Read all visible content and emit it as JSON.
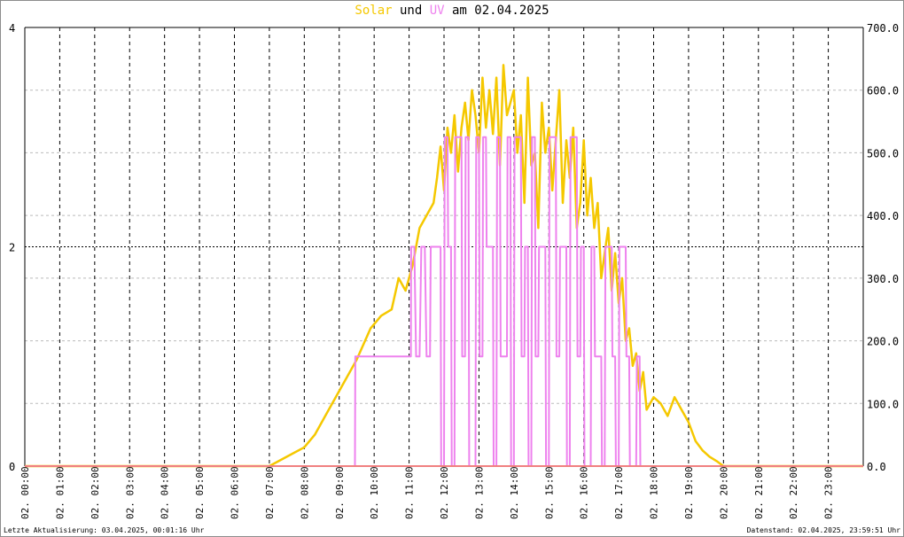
{
  "title": {
    "solar": "Solar",
    "und": " und ",
    "uv": "UV",
    "rest": " am 02.04.2025"
  },
  "footer": {
    "left": "Letzte Aktualisierung: 03.04.2025, 00:01:16 Uhr",
    "right": "Datenstand: 02.04.2025, 23:59:51 Uhr"
  },
  "colors": {
    "solar": "#f5c800",
    "uv": "#ee82ee",
    "baseline": "#f08080"
  },
  "chart_data": {
    "type": "line",
    "x_unit": "hour",
    "xlim": [
      0,
      24
    ],
    "left_axis": {
      "ylim": [
        0,
        4
      ],
      "ticks": [
        0,
        2,
        4
      ],
      "tick_labels": [
        "0",
        "2",
        "4"
      ]
    },
    "right_axis": {
      "ylim": [
        0,
        700
      ],
      "ticks": [
        0,
        100,
        200,
        300,
        400,
        500,
        600,
        700
      ],
      "tick_labels": [
        "0.0",
        "100.0",
        "200.0",
        "300.0",
        "400.0",
        "500.0",
        "600.0",
        "700.0"
      ]
    },
    "x_tick_labels": [
      "02. 00:00",
      "02. 01:00",
      "02. 02:00",
      "02. 03:00",
      "02. 04:00",
      "02. 05:00",
      "02. 06:00",
      "02. 07:00",
      "02. 08:00",
      "02. 09:00",
      "02. 10:00",
      "02. 11:00",
      "02. 12:00",
      "02. 13:00",
      "02. 14:00",
      "02. 15:00",
      "02. 16:00",
      "02. 17:00",
      "02. 18:00",
      "02. 19:00",
      "02. 20:00",
      "02. 21:00",
      "02. 22:00",
      "02. 23:00"
    ],
    "grid": true,
    "series": [
      {
        "name": "Solar",
        "axis": "right",
        "x": [
          0,
          7.0,
          7.5,
          8.0,
          8.3,
          8.6,
          9.0,
          9.5,
          9.9,
          10.2,
          10.5,
          10.7,
          10.9,
          11.1,
          11.3,
          11.5,
          11.7,
          11.8,
          11.9,
          12.0,
          12.1,
          12.2,
          12.3,
          12.4,
          12.5,
          12.6,
          12.7,
          12.8,
          12.9,
          13.0,
          13.1,
          13.2,
          13.3,
          13.4,
          13.5,
          13.6,
          13.7,
          13.8,
          13.9,
          14.0,
          14.1,
          14.2,
          14.3,
          14.4,
          14.5,
          14.6,
          14.7,
          14.8,
          14.9,
          15.0,
          15.1,
          15.2,
          15.3,
          15.4,
          15.5,
          15.6,
          15.7,
          15.8,
          15.9,
          16.0,
          16.1,
          16.2,
          16.3,
          16.4,
          16.5,
          16.6,
          16.7,
          16.8,
          16.9,
          17.0,
          17.1,
          17.2,
          17.3,
          17.4,
          17.5,
          17.6,
          17.7,
          17.8,
          17.9,
          18.0,
          18.2,
          18.4,
          18.6,
          18.8,
          19.0,
          19.2,
          19.4,
          19.6,
          19.8,
          20.0,
          24
        ],
        "values": [
          0,
          0,
          15,
          30,
          50,
          80,
          120,
          170,
          220,
          240,
          250,
          300,
          280,
          320,
          380,
          400,
          420,
          460,
          510,
          440,
          540,
          500,
          560,
          470,
          540,
          580,
          520,
          600,
          560,
          500,
          620,
          540,
          600,
          530,
          620,
          480,
          640,
          560,
          580,
          600,
          500,
          560,
          420,
          620,
          480,
          500,
          380,
          580,
          500,
          540,
          440,
          520,
          600,
          420,
          520,
          460,
          540,
          380,
          420,
          520,
          400,
          460,
          380,
          420,
          300,
          340,
          380,
          280,
          340,
          260,
          300,
          200,
          220,
          160,
          180,
          120,
          150,
          90,
          100,
          110,
          100,
          80,
          110,
          90,
          70,
          40,
          25,
          15,
          8,
          0,
          0
        ]
      },
      {
        "name": "UV",
        "axis": "left",
        "x": [
          0,
          9.45,
          9.46,
          11.05,
          11.06,
          11.15,
          11.2,
          11.3,
          11.35,
          11.45,
          11.5,
          11.6,
          11.62,
          11.9,
          11.92,
          12.0,
          12.02,
          12.1,
          12.12,
          12.2,
          12.22,
          12.3,
          12.32,
          12.5,
          12.52,
          12.6,
          12.62,
          12.7,
          12.72,
          12.9,
          12.92,
          13.0,
          13.02,
          13.1,
          13.12,
          13.2,
          13.22,
          13.4,
          13.42,
          13.5,
          13.52,
          13.6,
          13.62,
          13.8,
          13.82,
          13.9,
          13.92,
          14.0,
          14.02,
          14.2,
          14.22,
          14.3,
          14.32,
          14.4,
          14.42,
          14.5,
          14.52,
          14.6,
          14.62,
          14.7,
          14.72,
          14.9,
          14.92,
          15.0,
          15.02,
          15.2,
          15.22,
          15.3,
          15.32,
          15.5,
          15.52,
          15.6,
          15.62,
          15.8,
          15.82,
          15.9,
          15.92,
          16.0,
          16.02,
          16.2,
          16.22,
          16.3,
          16.32,
          16.5,
          16.52,
          16.6,
          16.62,
          16.8,
          16.82,
          16.9,
          16.92,
          17.0,
          17.02,
          17.2,
          17.22,
          17.3,
          17.32,
          17.5,
          17.52,
          17.6,
          17.62,
          17.8,
          17.82,
          24
        ],
        "values": [
          0,
          0,
          1,
          1,
          2,
          2,
          1,
          1,
          2,
          2,
          1,
          1,
          2,
          2,
          0,
          0,
          3,
          3,
          2,
          2,
          0,
          0,
          3,
          3,
          1,
          1,
          3,
          3,
          0,
          0,
          3,
          3,
          1,
          1,
          3,
          3,
          2,
          2,
          0,
          0,
          3,
          3,
          1,
          1,
          3,
          3,
          0,
          0,
          3,
          3,
          1,
          1,
          2,
          2,
          0,
          0,
          3,
          3,
          1,
          1,
          2,
          2,
          0,
          0,
          3,
          3,
          1,
          1,
          2,
          2,
          0,
          0,
          3,
          3,
          1,
          1,
          2,
          2,
          0,
          0,
          2,
          2,
          1,
          1,
          0,
          0,
          2,
          2,
          1,
          1,
          0,
          0,
          2,
          2,
          1,
          1,
          0,
          0,
          1,
          1,
          0,
          0,
          0,
          0
        ]
      }
    ]
  }
}
